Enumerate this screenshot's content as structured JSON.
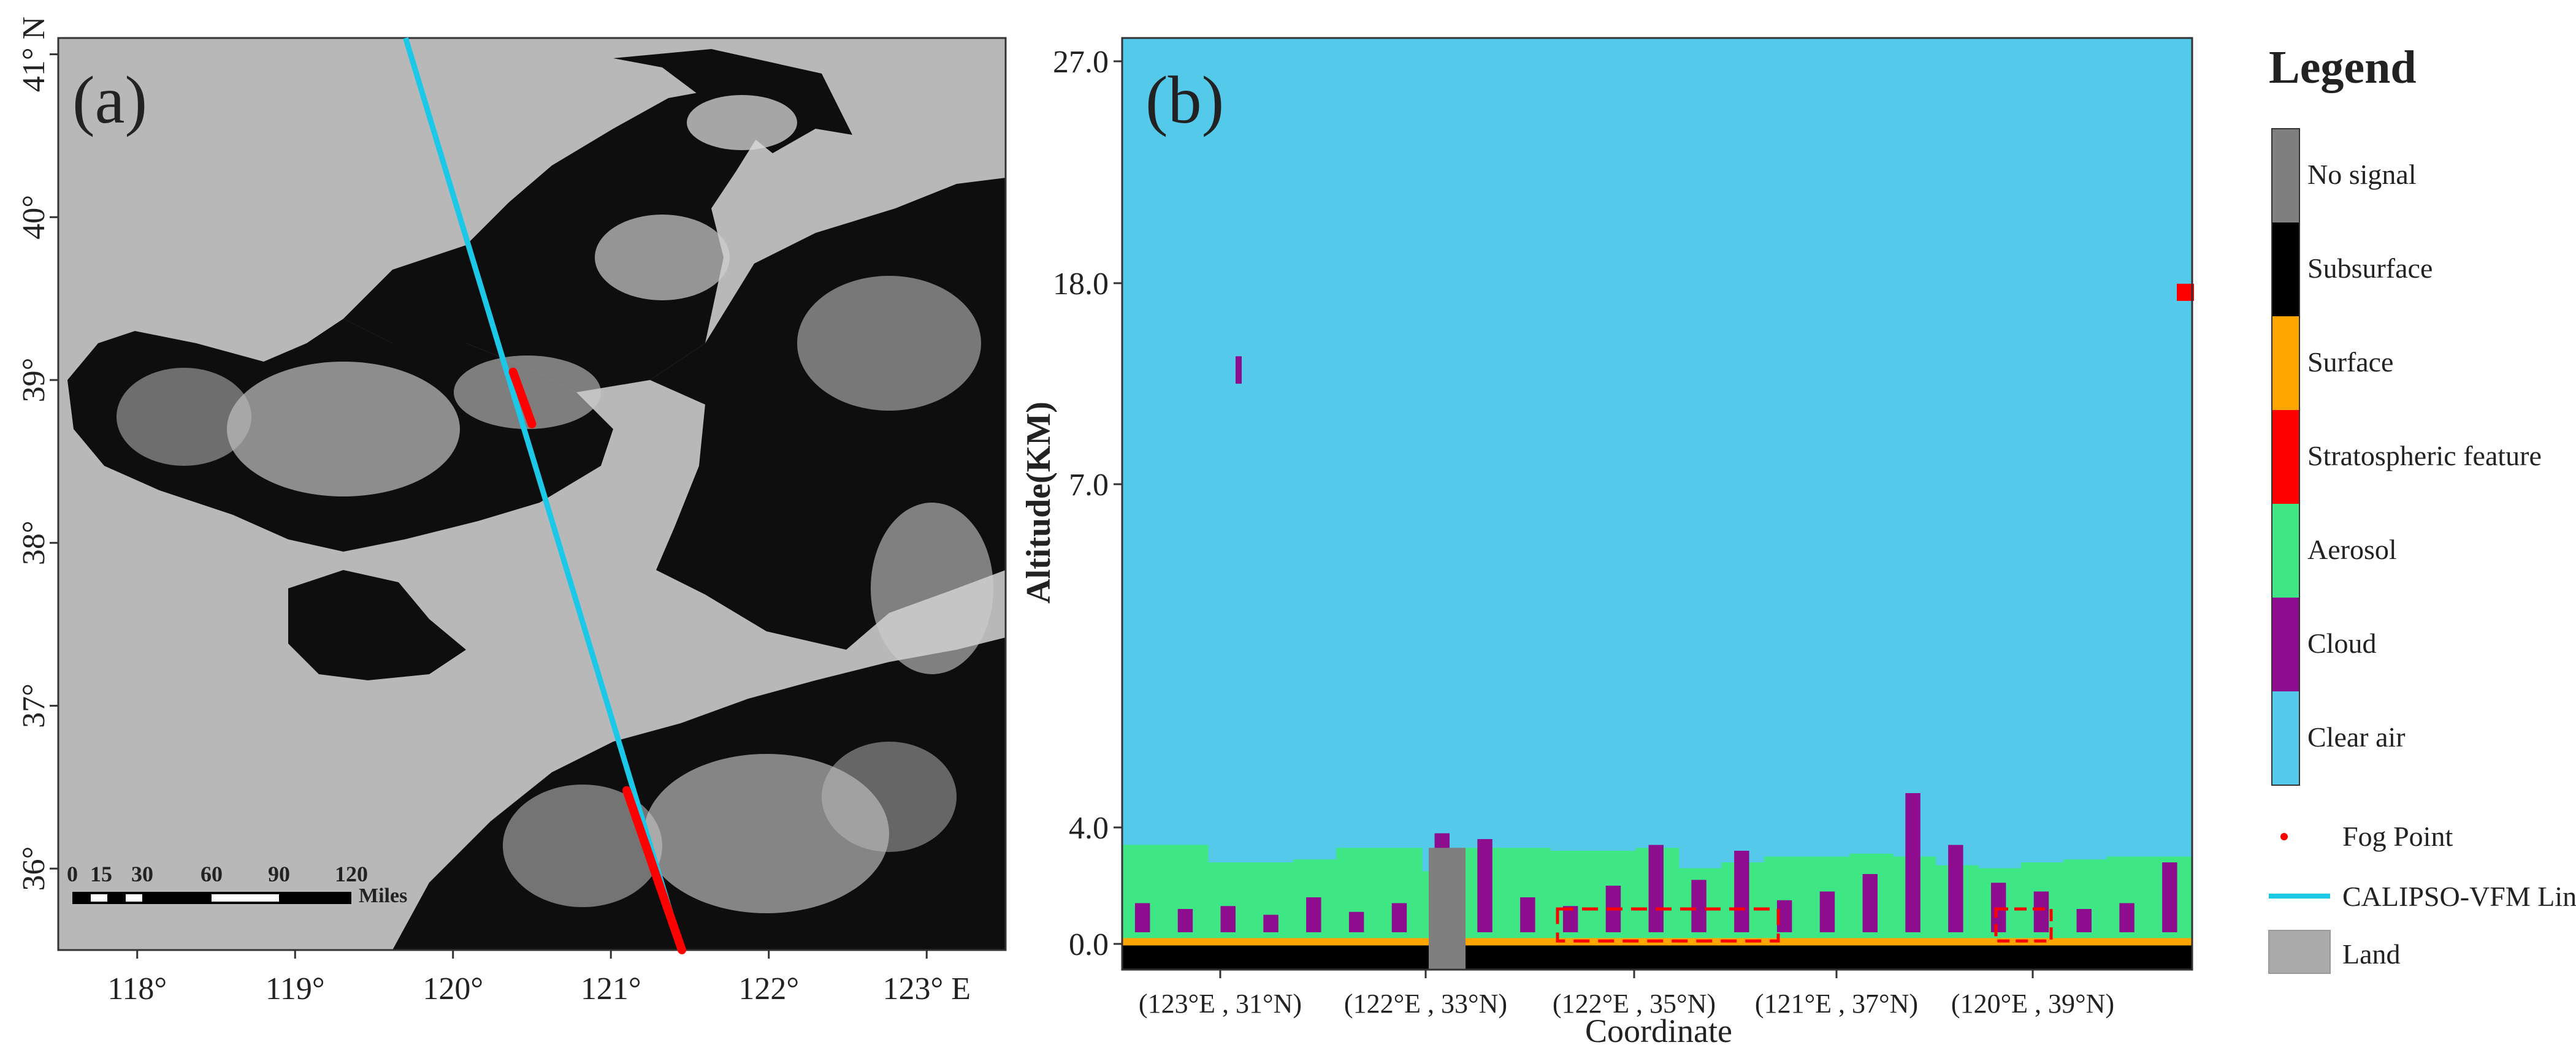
{
  "colors": {
    "sea": "#b8b8b8",
    "land_dark": "#0e0e0e",
    "cloud_light": "#d9d9d9",
    "track_cyan": "#1cc8e8",
    "fog_red": "#ff0000",
    "clear_air": "#55c9ea",
    "aerosol": "#3ee684",
    "cloud": "#8e0c8e",
    "surface": "#ffa500",
    "subsurface": "#000000",
    "no_signal": "#7f7f7f",
    "land": "#aaaaaa",
    "stratospheric": "#ff0000"
  },
  "chart_data": [
    {
      "type": "map",
      "panel_label": "(a)",
      "lon_ticks": [
        "118°",
        "119°",
        "120°",
        "121°",
        "122°",
        "123° E"
      ],
      "lat_ticks": [
        "41° N",
        "40°",
        "39°",
        "38°",
        "37°",
        "36°"
      ],
      "lon_range": [
        117.5,
        123.5
      ],
      "lat_range": [
        35.5,
        41.1
      ],
      "scale_bar": {
        "ticks": [
          "0",
          "15",
          "30",
          "60",
          "90",
          "120"
        ],
        "unit": "Miles"
      },
      "track": {
        "start": [
          119.7,
          41.1
        ],
        "end": [
          121.45,
          35.5
        ]
      },
      "fog_segments": [
        {
          "from": [
            120.38,
            39.05
          ],
          "to": [
            120.5,
            38.73
          ]
        },
        {
          "from": [
            121.1,
            36.48
          ],
          "to": [
            121.45,
            35.5
          ]
        }
      ]
    },
    {
      "type": "heatmap",
      "panel_label": "(b)",
      "title": "",
      "xlabel": "Coordinate",
      "ylabel": "Altitude(KM)",
      "x_ticks": [
        "(123°E , 31°N)",
        "(122°E , 33°N)",
        "(122°E , 35°N)",
        "(121°E , 37°N)",
        "(120°E , 39°N)"
      ],
      "y_ticks": [
        "0.0",
        "4.0",
        "7.0",
        "18.0",
        "27.0"
      ],
      "legend_title": "Legend",
      "legend": [
        "No signal",
        "Subsurface",
        "Surface",
        "Stratospheric feature",
        "Aerosol",
        "Cloud",
        "Clear air"
      ],
      "extra_legend": [
        "Fog Point",
        "CALIPSO-VFM Line",
        "Land"
      ],
      "aerosol_top_km": [
        3.4,
        3.4,
        2.8,
        2.8,
        2.9,
        3.3,
        3.3,
        2.5,
        3.3,
        3.3,
        3.2,
        3.2,
        3.3,
        2.6,
        2.8,
        3.0,
        3.0,
        3.1,
        3.0,
        2.7,
        2.6,
        2.8,
        2.9,
        3.0,
        3.0
      ],
      "cloud_tops_km": [
        1.4,
        1.2,
        1.3,
        1.0,
        1.6,
        1.1,
        1.4,
        3.8,
        3.6,
        1.6,
        1.3,
        2.0,
        3.4,
        2.2,
        3.2,
        1.5,
        1.8,
        2.4,
        4.3,
        3.4,
        2.1,
        1.8,
        1.2,
        1.4,
        2.8
      ],
      "stratospheric_feature_km": 17.5,
      "upper_cloud_km": [
        12.5,
        14.0
      ]
    }
  ]
}
